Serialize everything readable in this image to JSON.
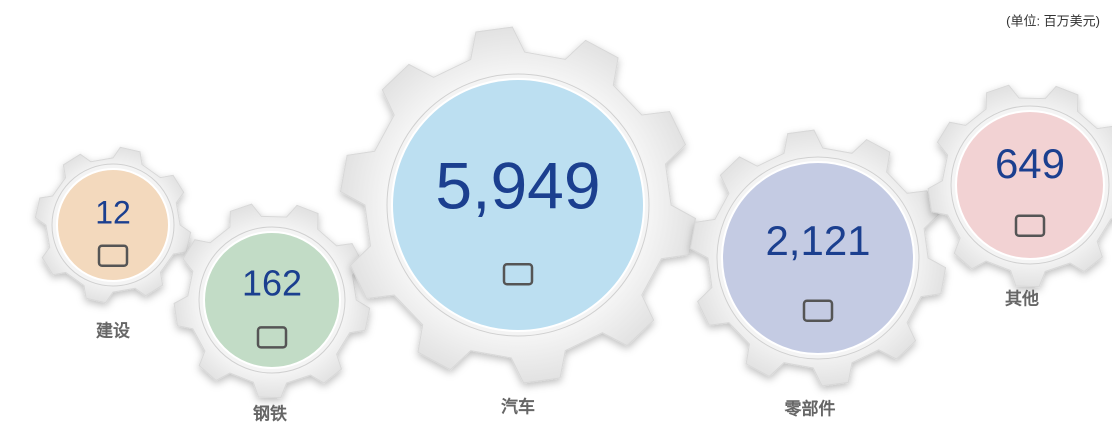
{
  "unit": "(单位: 百万美元)",
  "items": [
    {
      "value": "12",
      "label": "建设"
    },
    {
      "value": "162",
      "label": "钢铁"
    },
    {
      "value": "5,949",
      "label": "汽车"
    },
    {
      "value": "2,121",
      "label": "零部件"
    },
    {
      "value": "649",
      "label": "其他"
    }
  ]
}
